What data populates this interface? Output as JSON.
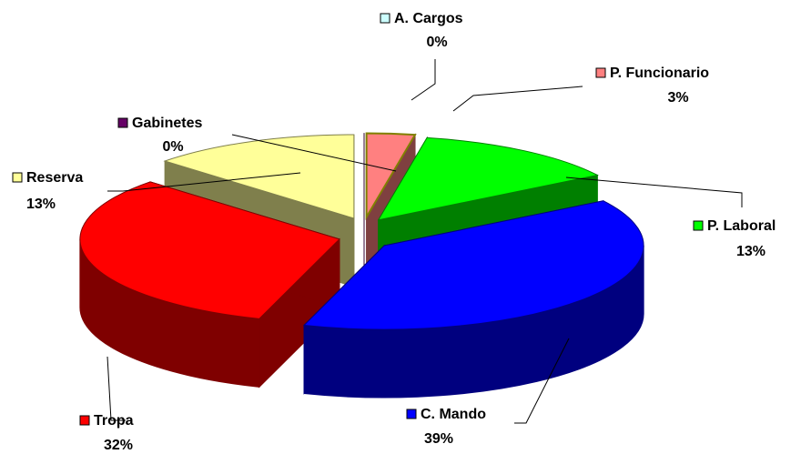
{
  "chart_data": {
    "type": "pie",
    "categories": [
      "A. Cargos",
      "P. Funcionario",
      "P. Laboral",
      "C. Mando",
      "Tropa",
      "Reserva",
      "Gabinetes"
    ],
    "values": [
      0,
      3,
      13,
      39,
      32,
      13,
      0
    ],
    "value_labels": [
      "0%",
      "3%",
      "13%",
      "39%",
      "32%",
      "13%",
      "0%"
    ],
    "colors": [
      "#ccffff",
      "#ff8080",
      "#00ff00",
      "#0000ff",
      "#ff0000",
      "#ffff99",
      "#660066"
    ]
  }
}
